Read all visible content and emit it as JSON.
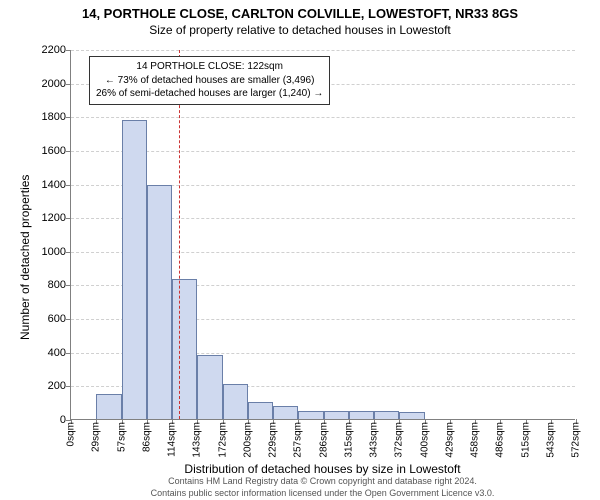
{
  "title_main": "14, PORTHOLE CLOSE, CARLTON COLVILLE, LOWESTOFT, NR33 8GS",
  "title_sub": "Size of property relative to detached houses in Lowestoft",
  "chart": {
    "type": "histogram",
    "y_axis_title": "Number of detached properties",
    "x_axis_title": "Distribution of detached houses by size in Lowestoft",
    "ylim": [
      0,
      2200
    ],
    "ytick_step": 200,
    "y_ticks": [
      0,
      200,
      400,
      600,
      800,
      1000,
      1200,
      1400,
      1600,
      1800,
      2000,
      2200
    ],
    "x_ticks": [
      "0sqm",
      "29sqm",
      "57sqm",
      "86sqm",
      "114sqm",
      "143sqm",
      "172sqm",
      "200sqm",
      "229sqm",
      "257sqm",
      "286sqm",
      "315sqm",
      "343sqm",
      "372sqm",
      "400sqm",
      "429sqm",
      "458sqm",
      "486sqm",
      "515sqm",
      "543sqm",
      "572sqm"
    ],
    "bar_color": "#cfd9ef",
    "bar_border": "#6a7fa8",
    "grid_color": "#d0d0d0",
    "axis_color": "#808080",
    "background_color": "#ffffff",
    "values": [
      0,
      150,
      1780,
      1390,
      830,
      380,
      210,
      100,
      80,
      50,
      50,
      50,
      50,
      40,
      0,
      0,
      0,
      0,
      0,
      0
    ],
    "reference_line": {
      "position_sqm": 122,
      "color": "#cc3333"
    },
    "annotation": {
      "line1": "14 PORTHOLE CLOSE: 122sqm",
      "line2": "← 73% of detached houses are smaller (3,496)",
      "line3": "26% of semi-detached houses are larger (1,240) →",
      "border_color": "#333333",
      "bg_color": "#ffffff",
      "fontsize": 10
    }
  },
  "footer": {
    "line1": "Contains HM Land Registry data © Crown copyright and database right 2024.",
    "line2": "Contains public sector information licensed under the Open Government Licence v3.0."
  }
}
